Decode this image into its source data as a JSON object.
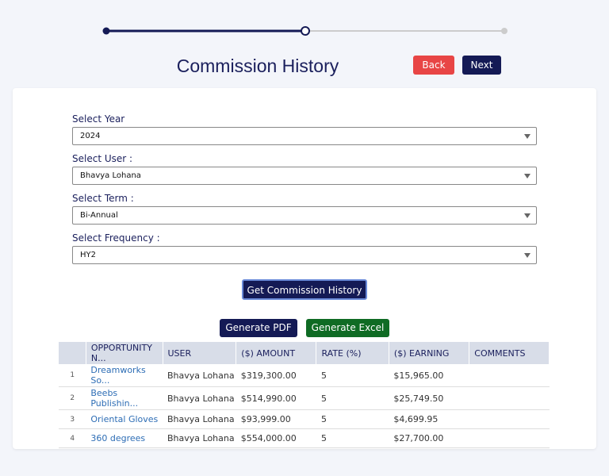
{
  "header": {
    "title": "Commission History",
    "back": "Back",
    "next": "Next"
  },
  "form": {
    "fields": [
      {
        "label": "Select Year",
        "value": "2024"
      },
      {
        "label": "Select User :",
        "value": "Bhavya Lohana"
      },
      {
        "label": "Select Term :",
        "value": "Bi-Annual"
      },
      {
        "label": "Select Frequency :",
        "value": "HY2"
      }
    ],
    "submit": "Get Commission History",
    "pdf": "Generate PDF",
    "excel": "Generate Excel"
  },
  "table": {
    "columns": [
      "OPPORTUNITY N...",
      "USER",
      "($) AMOUNT",
      "RATE (%)",
      "($) EARNING",
      "COMMENTS"
    ],
    "rows": [
      [
        "1",
        "Dreamworks So...",
        "Bhavya Lohana",
        "$319,300.00",
        "5",
        "$15,965.00",
        ""
      ],
      [
        "2",
        "Beebs Publishin...",
        "Bhavya Lohana",
        "$514,990.00",
        "5",
        "$25,749.50",
        ""
      ],
      [
        "3",
        "Oriental Gloves",
        "Bhavya Lohana",
        "$93,999.00",
        "5",
        "$4,699.95",
        ""
      ],
      [
        "4",
        "360 degrees",
        "Bhavya Lohana",
        "$554,000.00",
        "5",
        "$27,700.00",
        ""
      ]
    ]
  }
}
